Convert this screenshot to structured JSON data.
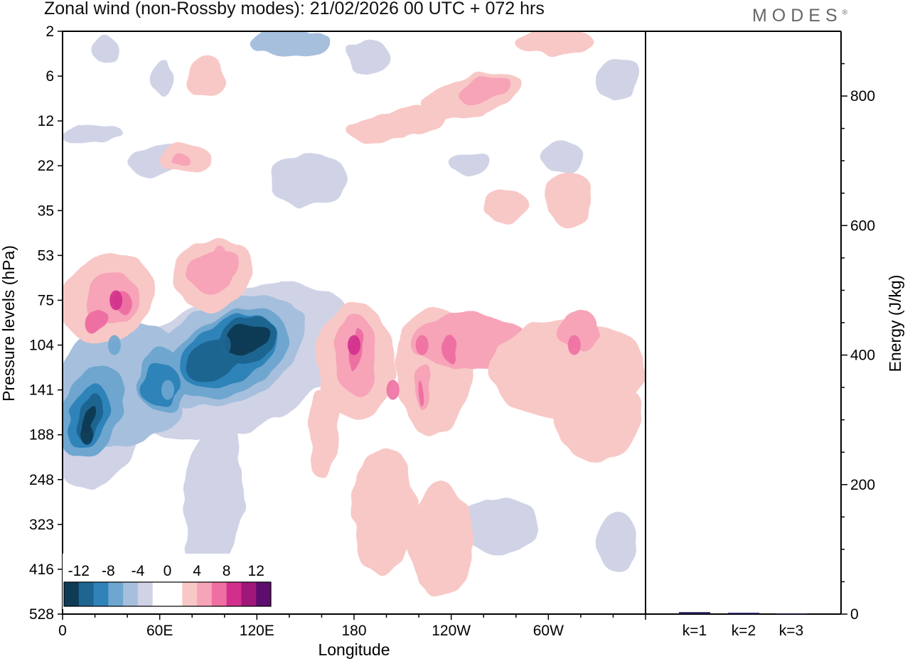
{
  "title": "Zonal wind (non-Rossby modes):  21/02/2026  00 UTC  + 072 hrs",
  "brand": "MODES",
  "brand_mark": "®",
  "chart_data": [
    {
      "type": "heatmap",
      "title": "Zonal wind (non-Rossby modes):  21/02/2026  00 UTC  + 072 hrs",
      "xlabel": "Longitude",
      "ylabel": "Pressure levels (hPa)",
      "x_ticks": [
        "0",
        "60E",
        "120E",
        "180",
        "120W",
        "60W"
      ],
      "x_tick_values": [
        0,
        60,
        120,
        180,
        240,
        300
      ],
      "xlim": [
        0,
        360
      ],
      "y_ticks": [
        "2",
        "6",
        "12",
        "22",
        "35",
        "53",
        "75",
        "104",
        "141",
        "188",
        "248",
        "323",
        "416",
        "528"
      ],
      "legend_labels": [
        "-12",
        "-8",
        "-4",
        "0",
        "4",
        "8",
        "12"
      ],
      "legend_position": "bottom-left",
      "levels": [
        -14,
        -12,
        -10,
        -8,
        -6,
        -4,
        -2,
        2,
        4,
        6,
        8,
        10,
        12,
        14
      ],
      "colors": [
        "#0f3b55",
        "#1f6591",
        "#2f83b9",
        "#6ea6cf",
        "#a6bfdd",
        "#d0d3e6",
        "#ffffff",
        "#ffffff",
        "#f8c8c6",
        "#f7a3b8",
        "#ee6fa2",
        "#d22f8d",
        "#a0177a",
        "#5e0d6e"
      ],
      "features": [
        {
          "lon": 15,
          "level": "188",
          "value": -14
        },
        {
          "lon": 32,
          "level": "104",
          "value": -9
        },
        {
          "lon": 65,
          "level": "141",
          "value": -9
        },
        {
          "lon": 100,
          "level": "104",
          "value": -13
        },
        {
          "lon": 112,
          "level": "104",
          "value": -15
        },
        {
          "lon": 33,
          "level": "75",
          "value": 9
        },
        {
          "lon": 97,
          "level": "53",
          "value": 6
        },
        {
          "lon": 180,
          "level": "104",
          "value": 9
        },
        {
          "lon": 222,
          "level": "104",
          "value": 8
        },
        {
          "lon": 204,
          "level": "141",
          "value": 8
        },
        {
          "lon": 316,
          "level": "104",
          "value": 7
        }
      ]
    },
    {
      "type": "bar",
      "ylabel": "Energy (J/kg)",
      "categories": [
        "k=1",
        "k=2",
        "k=3"
      ],
      "values": [
        3,
        2,
        1
      ],
      "ylim": [
        0,
        900
      ],
      "y_ticks": [
        "0",
        "200",
        "400",
        "600",
        "800"
      ],
      "y_tick_values": [
        0,
        200,
        400,
        600,
        800
      ],
      "bar_color": "#1a1a4e"
    }
  ]
}
